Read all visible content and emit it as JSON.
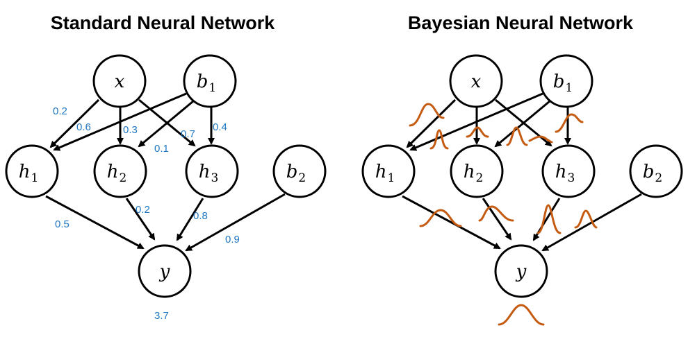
{
  "left": {
    "title": "Standard Neural Network",
    "nodes": {
      "x": "x",
      "b1": "b",
      "b1_sub": "1",
      "h1": "h",
      "h1_sub": "1",
      "h2": "h",
      "h2_sub": "2",
      "h3": "h",
      "h3_sub": "3",
      "b2": "b",
      "b2_sub": "2",
      "y": "y"
    },
    "weights": {
      "x_h1": "0.2",
      "b1_h1": "0.6",
      "x_h2": "0.3",
      "b1_h2": "0.1",
      "x_h3": "0.7",
      "b1_h3": "0.4",
      "h1_y": "0.5",
      "h2_y": "0.2",
      "h3_y": "0.8",
      "b2_y": "0.9",
      "output": "3.7"
    }
  },
  "right": {
    "title": "Bayesian Neural Network",
    "nodes": {
      "x": "x",
      "b1": "b",
      "b1_sub": "1",
      "h1": "h",
      "h1_sub": "1",
      "h2": "h",
      "h2_sub": "2",
      "h3": "h",
      "h3_sub": "3",
      "b2": "b",
      "b2_sub": "2",
      "y": "y"
    }
  },
  "colors": {
    "weight_label": "#1f77c4",
    "distribution": "#c55a11",
    "edge": "#000000"
  }
}
